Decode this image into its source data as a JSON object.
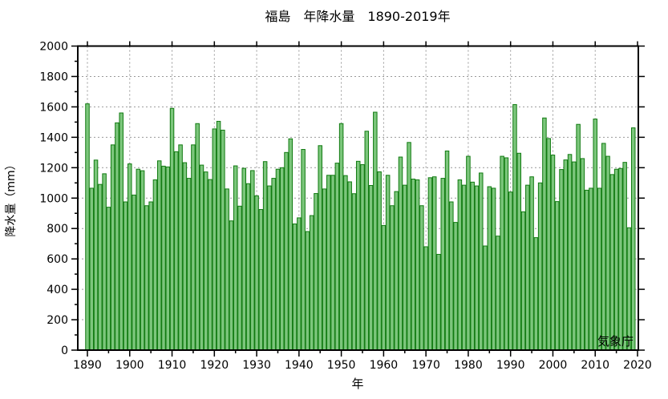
{
  "title": "福島　年降水量　1890-2019年",
  "watermark": "気象庁",
  "axes": {
    "ylabel": "降水量（mm）",
    "xlabel": "年",
    "ymin": 0,
    "ymax": 2000,
    "ystep": 200,
    "yminor": 100,
    "xtick_start": 1890,
    "xtick_end": 2020,
    "xtick_step": 10,
    "xminor": 5
  },
  "colors": {
    "bar_fill": "#7cc67c",
    "bar_edge": "#107a10",
    "grid": "#999999",
    "axis": "#000000"
  },
  "chart_data": {
    "type": "bar",
    "title": "福島　年降水量　1890-2019年",
    "xlabel": "年",
    "ylabel": "降水量（mm）",
    "x_start_year": 1890,
    "x_end_year": 2019,
    "ylim": [
      0,
      2000
    ],
    "xlim": [
      1890,
      2020
    ],
    "grid": true,
    "legend": "none",
    "annotation": "気象庁",
    "values": [
      1620,
      1065,
      1250,
      1090,
      1160,
      940,
      1350,
      1495,
      1560,
      975,
      1225,
      1020,
      1190,
      1180,
      950,
      975,
      1120,
      1245,
      1210,
      1205,
      1590,
      1305,
      1350,
      1233,
      1130,
      1350,
      1490,
      1217,
      1172,
      1122,
      1455,
      1505,
      1447,
      1060,
      850,
      1212,
      947,
      1196,
      1095,
      1181,
      1015,
      925,
      1240,
      1080,
      1130,
      1190,
      1200,
      1300,
      1390,
      830,
      870,
      1320,
      780,
      885,
      1030,
      1345,
      1060,
      1150,
      1150,
      1230,
      1490,
      1148,
      1107,
      1029,
      1242,
      1220,
      1440,
      1083,
      1565,
      1173,
      820,
      1150,
      950,
      1043,
      1270,
      1085,
      1366,
      1125,
      1120,
      950,
      680,
      1134,
      1140,
      630,
      1130,
      1310,
      975,
      840,
      1120,
      1085,
      1275,
      1105,
      1080,
      1165,
      685,
      1075,
      1065,
      750,
      1275,
      1265,
      1040,
      1615,
      1295,
      910,
      1085,
      1140,
      740,
      1100,
      1527,
      1392,
      1283,
      977,
      1188,
      1251,
      1287,
      1238,
      1485,
      1260,
      1052,
      1065,
      1520,
      1065,
      1360,
      1275,
      1155,
      1190,
      1195,
      1235,
      805,
      1462
    ]
  }
}
